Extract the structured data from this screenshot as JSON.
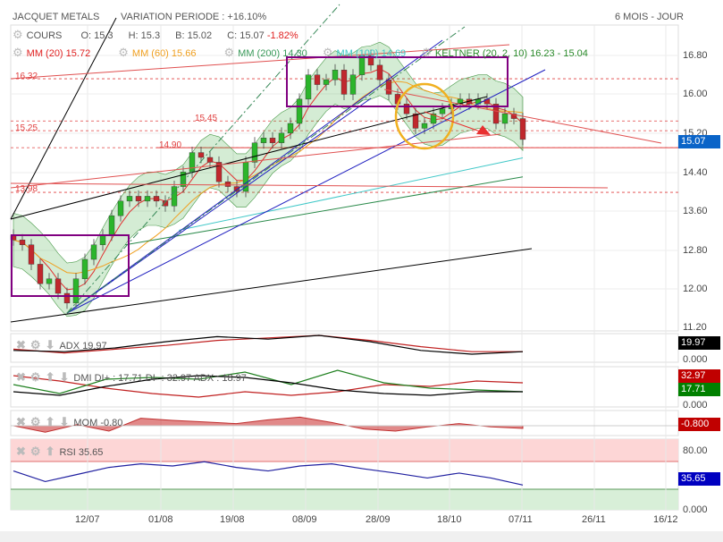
{
  "header": {
    "title": "JACQUET METALS",
    "variation": "VARIATION PERIODE : +16.10%",
    "period": "6 MOIS - JOUR"
  },
  "legend": {
    "cours": {
      "label": "COURS",
      "o": "O: 15.3",
      "h": "H: 15.3",
      "b": "B: 15.02",
      "c": "C: 15.07",
      "chg": "-1.82%"
    },
    "mm20": "MM (20)  15.72",
    "mm60": "MM (60)  15.66",
    "mm200": "MM (200)  14.30",
    "mm100": "MM (100)  14.69",
    "keltner": "KELTNER (20, 2, 10)  16.23 - 15.04"
  },
  "levels": [
    {
      "label": "16.32",
      "v": 16.32
    },
    {
      "label": "15.45",
      "v": 15.45
    },
    {
      "label": "15.25",
      "v": 15.25
    },
    {
      "label": "14.90",
      "v": 14.9
    },
    {
      "label": "13.98",
      "v": 13.98
    }
  ],
  "price_axis": [
    "16.80",
    "16.00",
    "15.20",
    "14.40",
    "13.60",
    "12.80",
    "12.00",
    "11.20"
  ],
  "last_price": "15.07",
  "dates": [
    "12/07",
    "01/08",
    "19/08",
    "08/09",
    "28/09",
    "18/10",
    "07/11",
    "26/11",
    "16/12"
  ],
  "colors": {
    "up": "#2bb52b",
    "down": "#c0282d",
    "mm20": "#e03030",
    "mm60": "#f0a020",
    "mm200": "#2a8a4a",
    "mm100": "#40c8c8",
    "badge_blue": "#0000c0"
  },
  "chart_data": {
    "type": "candlestick",
    "closes": [
      13.0,
      12.9,
      12.5,
      12.1,
      12.2,
      11.9,
      11.7,
      12.2,
      12.6,
      12.9,
      13.1,
      13.5,
      13.8,
      13.9,
      13.8,
      13.9,
      13.8,
      13.7,
      14.1,
      14.4,
      14.8,
      14.7,
      14.6,
      14.2,
      14.1,
      14.0,
      14.6,
      15.0,
      15.1,
      15.0,
      15.2,
      15.4,
      15.9,
      16.4,
      16.2,
      16.3,
      16.5,
      16.0,
      16.4,
      16.8,
      16.6,
      16.3,
      16.0,
      15.8,
      15.6,
      15.3,
      15.4,
      15.6,
      15.7,
      15.8,
      15.9,
      15.8,
      15.9,
      15.8,
      15.4,
      15.6,
      15.5,
      15.07
    ],
    "ylim": [
      11.2,
      16.8
    ]
  },
  "adx": {
    "label": "ADX  19.97",
    "value": "19.97",
    "zero": "0.000",
    "adx": [
      0.4,
      0.35,
      0.5,
      0.75,
      0.95,
      0.85,
      1.0,
      0.75,
      0.4,
      0.25,
      0.35
    ],
    "ref": [
      0.45,
      0.3,
      0.45,
      0.6,
      0.8,
      0.9,
      1.0,
      0.8,
      0.55,
      0.35,
      0.35
    ]
  },
  "dmi": {
    "label": "DMI DI+ : 17.71 DI- : 32.97 ADX : 18.97",
    "di_minus": "32.97",
    "di_plus": "17.71",
    "zero": "0.000",
    "dip": [
      0.55,
      0.3,
      0.7,
      0.75,
      0.7,
      0.9,
      0.55,
      0.95,
      0.6,
      0.45,
      0.4,
      0.35
    ],
    "dim": [
      0.8,
      0.65,
      0.45,
      0.3,
      0.2,
      0.35,
      0.25,
      0.35,
      0.55,
      0.5,
      0.65,
      0.6
    ],
    "adxl": [
      0.35,
      0.25,
      0.5,
      0.7,
      0.8,
      0.75,
      0.6,
      0.4,
      0.3,
      0.25,
      0.35,
      0.35
    ]
  },
  "mom": {
    "label": "MOM  -0.80",
    "value": "-0.800",
    "vals": [
      0,
      -0.6,
      0.1,
      -0.5,
      0.7,
      0.5,
      0.35,
      0.2,
      0.55,
      0.8,
      0.3,
      -0.3,
      -0.5,
      -0.1,
      0.2,
      -0.1,
      -0.25
    ]
  },
  "rsi": {
    "label": "RSI  35.65",
    "value": "35.65",
    "level80": "80.00",
    "zero": "0.000",
    "vals": [
      55,
      40,
      50,
      60,
      65,
      62,
      68,
      60,
      55,
      62,
      65,
      58,
      52,
      45,
      52,
      45,
      35
    ]
  }
}
